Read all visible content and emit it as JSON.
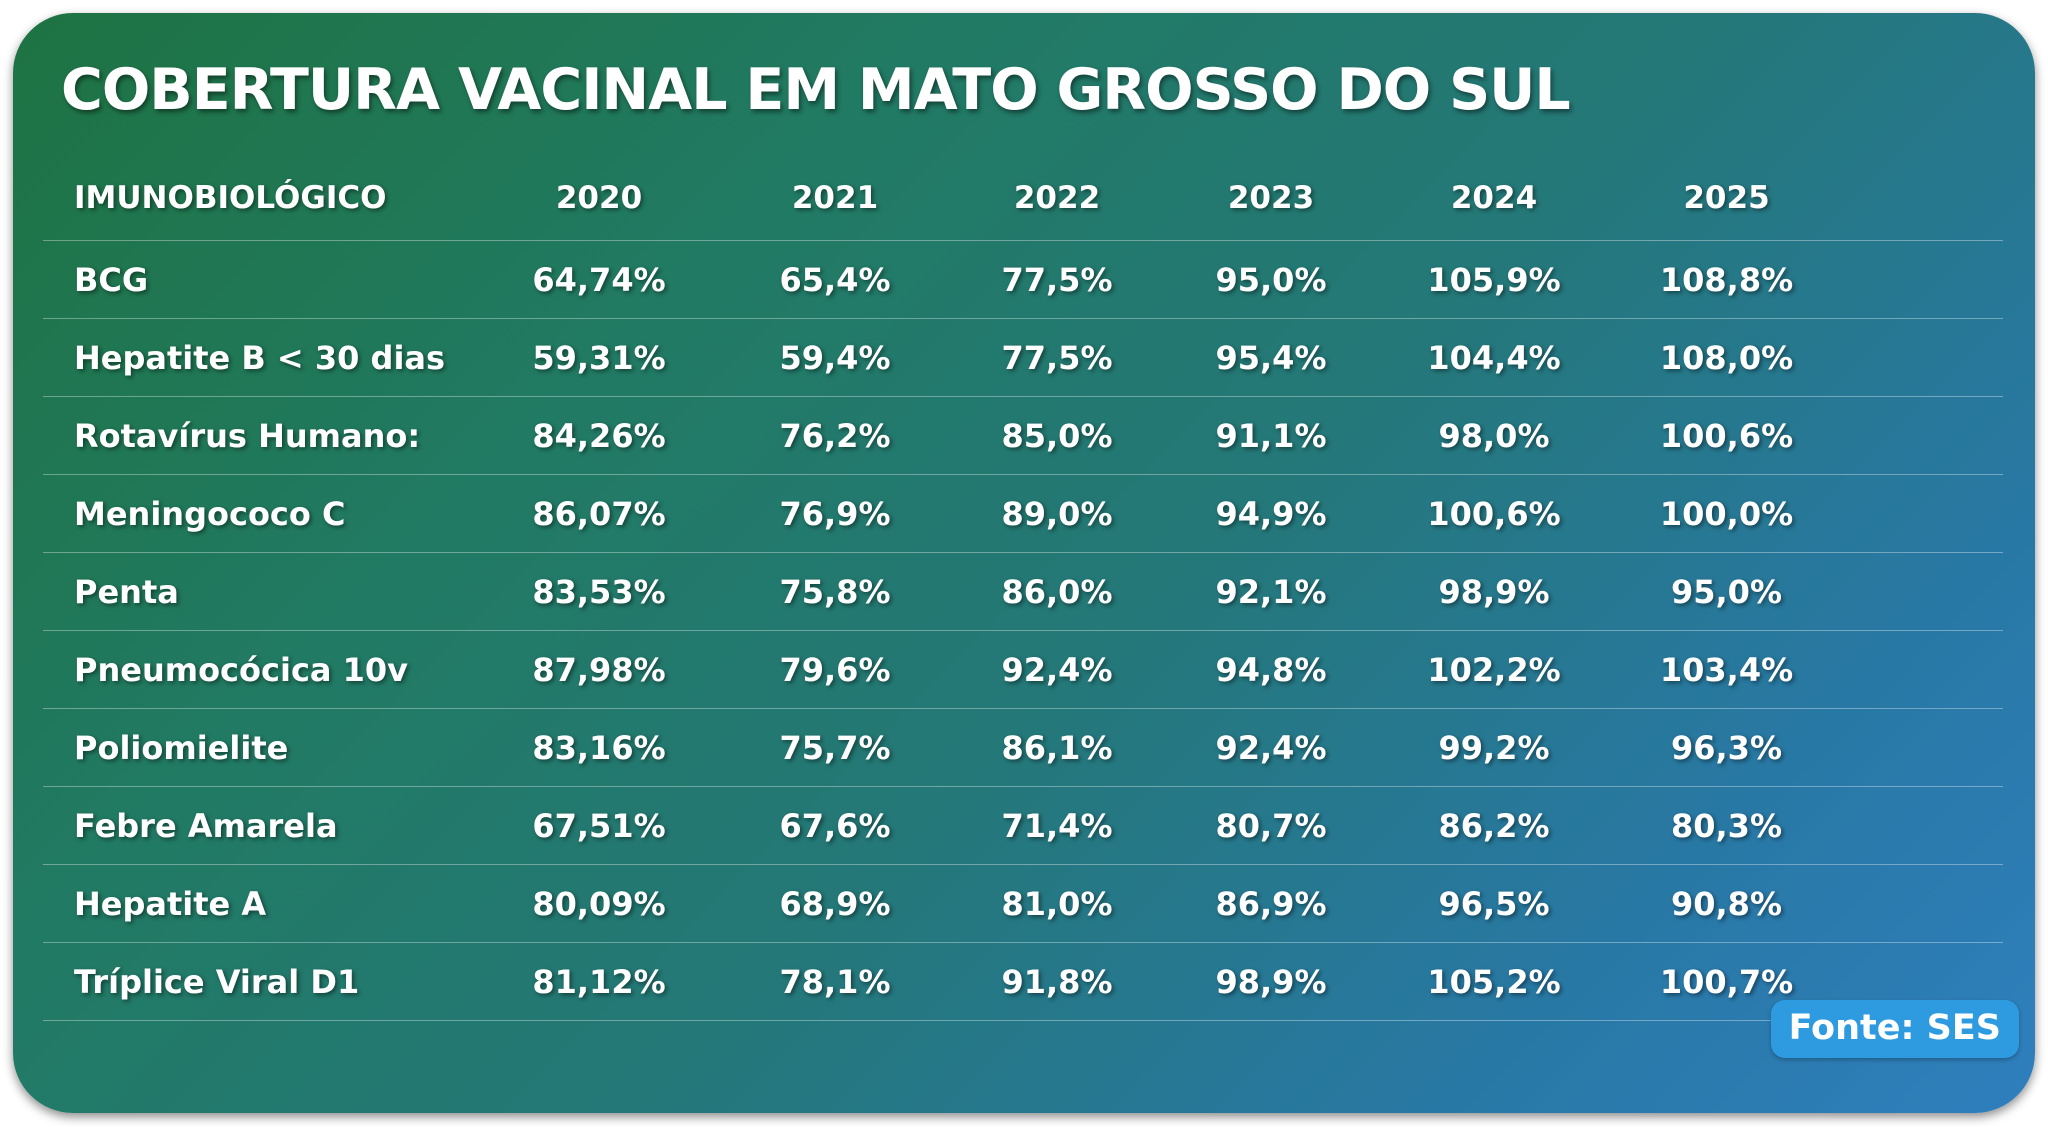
{
  "header": {
    "title": "COBERTURA VACINAL EM MATO GROSSO DO SUL"
  },
  "footer": {
    "source_label": "Fonte: SES"
  },
  "chart_data": {
    "type": "table",
    "title": "COBERTURA VACINAL EM MATO GROSSO DO SUL",
    "row_header_label": "IMUNOBIOLÓGICO",
    "columns": [
      "2020",
      "2021",
      "2022",
      "2023",
      "2024",
      "2025"
    ],
    "rows": [
      {
        "name": "BCG",
        "values": [
          "64,74%",
          "65,4%",
          "77,5%",
          "95,0%",
          "105,9%",
          "108,8%"
        ]
      },
      {
        "name": "Hepatite B < 30 dias",
        "values": [
          "59,31%",
          "59,4%",
          "77,5%",
          "95,4%",
          "104,4%",
          "108,0%"
        ]
      },
      {
        "name": "Rotavírus Humano:",
        "values": [
          "84,26%",
          "76,2%",
          "85,0%",
          "91,1%",
          "98,0%",
          "100,6%"
        ]
      },
      {
        "name": "Meningococo C",
        "values": [
          "86,07%",
          "76,9%",
          "89,0%",
          "94,9%",
          "100,6%",
          "100,0%"
        ]
      },
      {
        "name": "Penta",
        "values": [
          "83,53%",
          "75,8%",
          "86,0%",
          "92,1%",
          "98,9%",
          "95,0%"
        ]
      },
      {
        "name": "Pneumocócica 10v",
        "values": [
          "87,98%",
          "79,6%",
          "92,4%",
          "94,8%",
          "102,2%",
          "103,4%"
        ]
      },
      {
        "name": "Poliomielite",
        "values": [
          "83,16%",
          "75,7%",
          "86,1%",
          "92,4%",
          "99,2%",
          "96,3%"
        ]
      },
      {
        "name": "Febre Amarela",
        "values": [
          "67,51%",
          "67,6%",
          "71,4%",
          "80,7%",
          "86,2%",
          "80,3%"
        ]
      },
      {
        "name": "Hepatite A",
        "values": [
          "80,09%",
          "68,9%",
          "81,0%",
          "86,9%",
          "96,5%",
          "90,8%"
        ]
      },
      {
        "name": "Tríplice Viral D1",
        "values": [
          "81,12%",
          "78,1%",
          "91,8%",
          "98,9%",
          "105,2%",
          "100,7%"
        ]
      }
    ],
    "colors": {
      "background_start": "#1e7342",
      "background_end": "#2f7fbe",
      "source_badge": "#2e9be0",
      "text": "#ffffff"
    }
  }
}
